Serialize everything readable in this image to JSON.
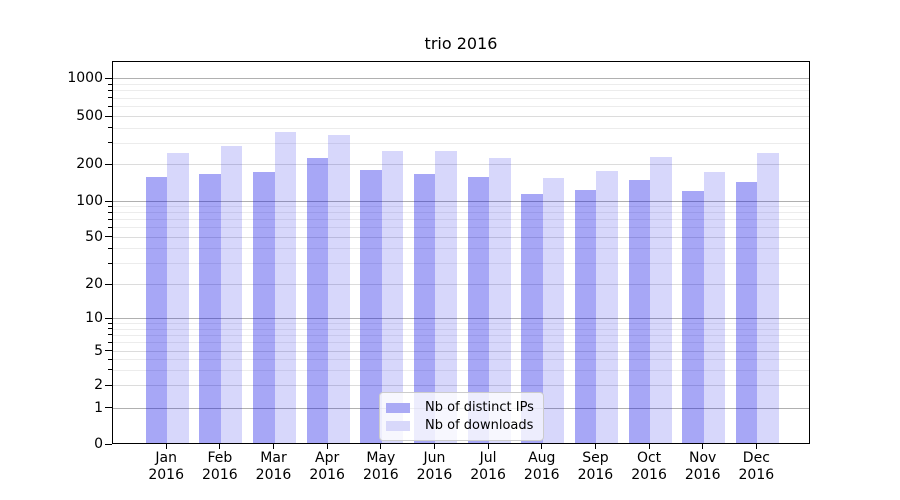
{
  "chart_data": {
    "type": "bar",
    "title": "trio 2016",
    "year": "2016",
    "categories": [
      "Jan",
      "Feb",
      "Mar",
      "Apr",
      "May",
      "Jun",
      "Jul",
      "Aug",
      "Sep",
      "Oct",
      "Nov",
      "Dec"
    ],
    "series": [
      {
        "name": "Nb of distinct IPs",
        "color": "#aaaaf5",
        "values": [
          157,
          167,
          174,
          225,
          180,
          168,
          158,
          114,
          124,
          149,
          121,
          144
        ]
      },
      {
        "name": "Nb of downloads",
        "color": "#d8d8fa",
        "values": [
          248,
          285,
          367,
          349,
          259,
          257,
          227,
          155,
          176,
          228,
          173,
          249
        ]
      }
    ],
    "y_ticks": [
      0,
      1,
      2,
      5,
      10,
      20,
      50,
      100,
      200,
      500,
      1000
    ],
    "yscale": "symlog",
    "ylim": [
      0,
      1400
    ],
    "xlabel": "",
    "ylabel": "",
    "grid": true,
    "legend_position": "lower center",
    "grid_major_color": "#b0b0b0",
    "grid_sub_color": "#dcdcdc",
    "grid_minor_color": "#ececec"
  },
  "legend": {
    "items": [
      "Nb of distinct IPs",
      "Nb of downloads"
    ]
  }
}
